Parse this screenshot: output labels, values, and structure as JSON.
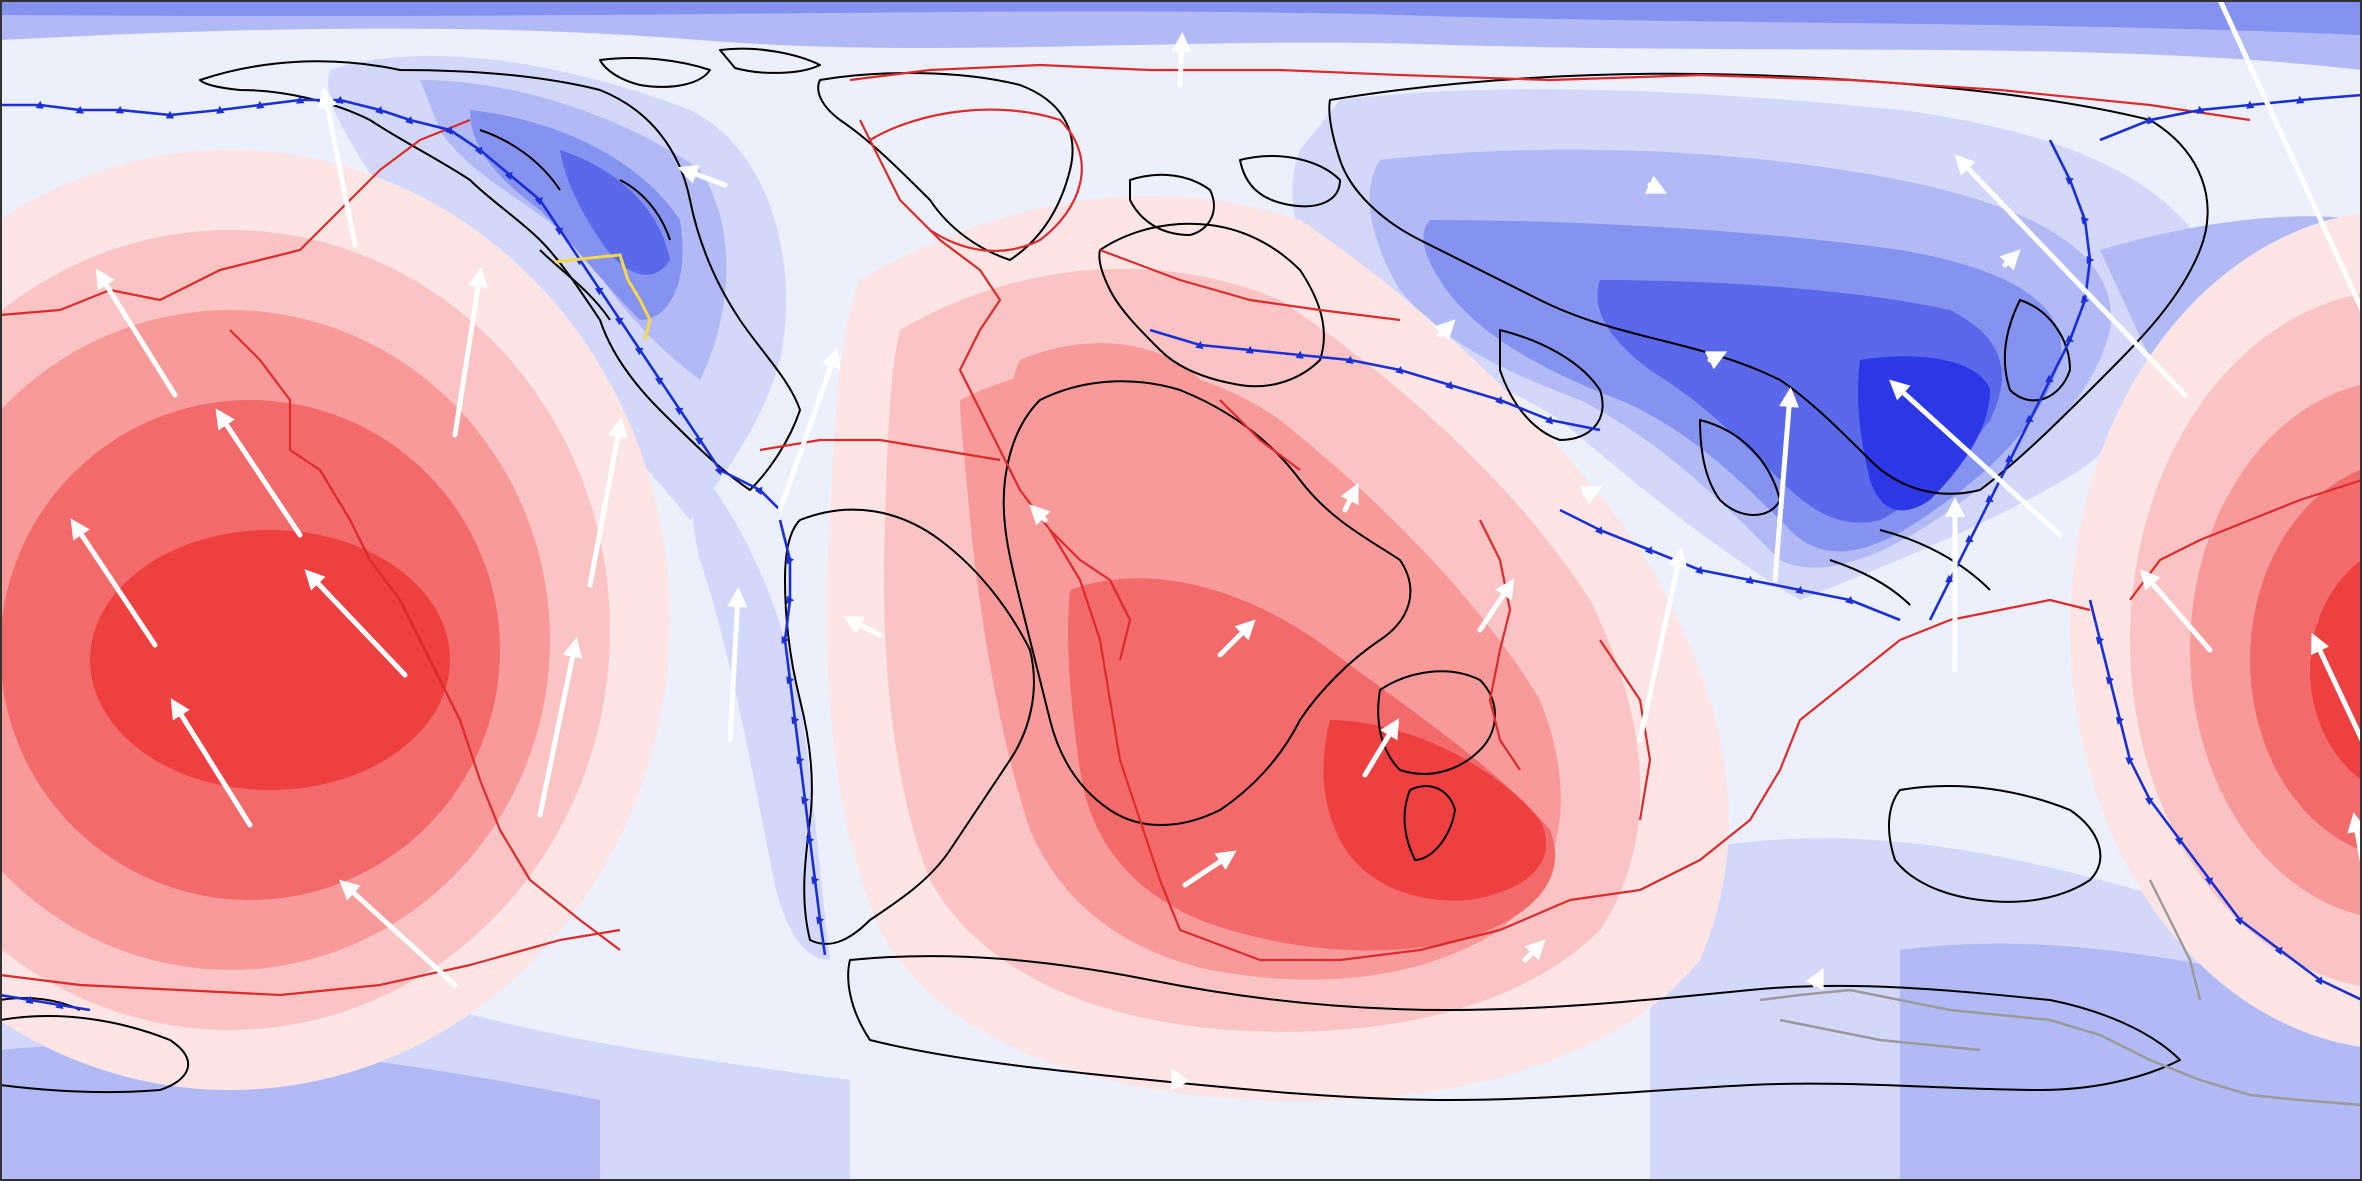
{
  "map": {
    "kind": "paleogeographic reconstruction with dynamic topography",
    "projection": "equirectangular",
    "has_text_labels": false,
    "colors": {
      "background": "#eceffc",
      "pos_1": "#fde5e5",
      "pos_2": "#fbc4c4",
      "pos_3": "#f89a9a",
      "pos_4": "#f26a6a",
      "pos_5": "#ee4040",
      "neg_1": "#d3d8fa",
      "neg_2": "#b2baf6",
      "neg_3": "#8592f0",
      "neg_4": "#5a68ea",
      "neg_5": "#2c38e6",
      "coastline": "#000000",
      "plate_boundary": "#dd2a2a",
      "subduction_zone": "#1a2fd6",
      "ridge_segment": "#f4d84a",
      "velocity_arrow": "#ffffff",
      "grey_outline": "#9a9a9a"
    },
    "layers": [
      {
        "name": "dynamic-topography-field",
        "role": "filled contours, blue negative / red positive"
      },
      {
        "name": "coastlines",
        "role": "continental outlines (black)"
      },
      {
        "name": "plate-boundaries",
        "role": "red lines"
      },
      {
        "name": "subduction-zones",
        "role": "blue lines with triangle teeth"
      },
      {
        "name": "plate-velocity-arrows",
        "role": "white arrows"
      }
    ]
  }
}
